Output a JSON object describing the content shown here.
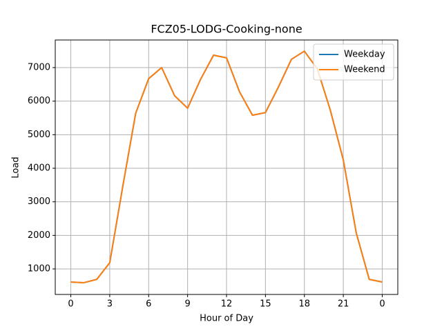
{
  "chart_data": {
    "type": "line",
    "title": "FCZ05-LODG-Cooking-none",
    "x_label": "Hour of Day",
    "y_label": "Load",
    "x": [
      0,
      1,
      2,
      3,
      4,
      5,
      6,
      7,
      8,
      9,
      10,
      11,
      12,
      13,
      14,
      15,
      16,
      17,
      18,
      19,
      20,
      21,
      22,
      23,
      24
    ],
    "series": [
      {
        "name": "Weekday",
        "color": "#1f77b4",
        "values": [
          610,
          590,
          690,
          1185,
          3450,
          5640,
          6670,
          7000,
          6160,
          5790,
          6650,
          7370,
          7290,
          6280,
          5580,
          5660,
          6420,
          7245,
          7490,
          6960,
          5730,
          4250,
          2070,
          690,
          610
        ]
      },
      {
        "name": "Weekend",
        "color": "#ff7f0e",
        "values": [
          610,
          590,
          690,
          1185,
          3450,
          5640,
          6670,
          7000,
          6160,
          5790,
          6650,
          7370,
          7290,
          6280,
          5580,
          5660,
          6420,
          7245,
          7490,
          6960,
          5730,
          4250,
          2070,
          690,
          610
        ]
      }
    ],
    "xlim": [
      -1.2,
      25.2
    ],
    "xticks": [
      0,
      3,
      6,
      9,
      12,
      15,
      18,
      21,
      {
        "value": 24,
        "label": "0"
      }
    ],
    "ylim": [
      240,
      7822
    ],
    "yticks": [
      1000,
      2000,
      3000,
      4000,
      5000,
      6000,
      7000
    ],
    "grid": true,
    "legend": "upper right"
  }
}
